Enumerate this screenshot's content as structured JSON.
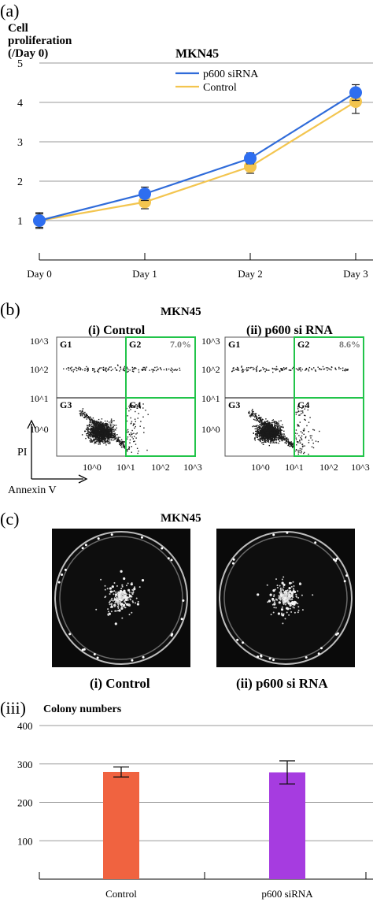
{
  "panel_a": {
    "label": "(a)",
    "ylabel_line1": "Cell",
    "ylabel_line2": "proliferation",
    "ylabel_line3": "(/Day 0)",
    "title": "MKN45"
  },
  "panel_b": {
    "label": "(b)",
    "title": "MKN45",
    "plots": [
      {
        "label": "(i) Control",
        "gates": [
          "G1",
          "G2",
          "G3",
          "G4"
        ],
        "percent": "7.0%"
      },
      {
        "label": "(ii) p600 si RNA",
        "gates": [
          "G1",
          "G2",
          "G3",
          "G4"
        ],
        "percent": "8.6%"
      }
    ],
    "y_ticks": [
      "10^3",
      "10^2",
      "10^1",
      "10^0"
    ],
    "x_ticks": [
      "10^0",
      "10^1",
      "10^2",
      "10^3"
    ],
    "yaxis_label": "PI",
    "xaxis_label": "Annexin V",
    "gate_color": "#22c44a"
  },
  "panel_c": {
    "label": "(c)",
    "title": "MKN45",
    "captions": [
      "(i) Control",
      "(ii) p600 si RNA"
    ]
  },
  "panel_c3": {
    "label": "(iii)",
    "title": "Colony numbers"
  },
  "chart_data": [
    {
      "type": "line",
      "title": "MKN45",
      "ylabel": "Cell proliferation (/Day 0)",
      "categories": [
        "Day 0",
        "Day 1",
        "Day 2",
        "Day 3"
      ],
      "yticks": [
        1,
        2,
        3,
        4,
        5
      ],
      "ylim": [
        0.0,
        5.0
      ],
      "grid": true,
      "legend_position": "top-center",
      "series": [
        {
          "name": "p600 siRNA",
          "values": [
            1.0,
            1.68,
            2.58,
            4.25
          ],
          "errors": [
            0.17,
            0.17,
            0.14,
            0.2
          ],
          "color": "#2f6bd9",
          "marker": "#2e6ef0"
        },
        {
          "name": "Control",
          "values": [
            1.0,
            1.47,
            2.37,
            4.02
          ],
          "errors": [
            0.2,
            0.17,
            0.17,
            0.3
          ],
          "color": "#f3c54f",
          "marker": "#f3c54f"
        }
      ]
    },
    {
      "type": "bar",
      "title": "Colony numbers",
      "categories": [
        "Control",
        "p600 siRNA"
      ],
      "values": [
        279,
        278
      ],
      "errors": [
        13,
        30
      ],
      "colors": [
        "#f06340",
        "#a63ce0"
      ],
      "yticks": [
        100,
        200,
        300,
        400
      ],
      "ylim": [
        0,
        400
      ],
      "grid": true
    }
  ]
}
